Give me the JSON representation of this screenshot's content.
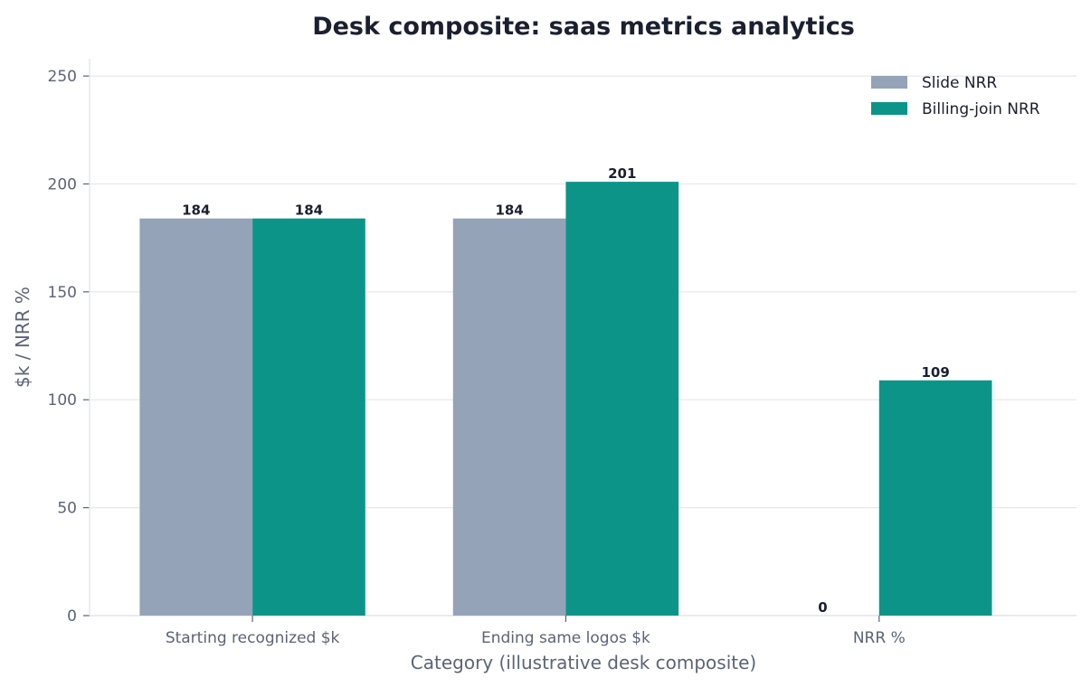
{
  "chart_data": {
    "type": "bar",
    "title": "Desk composite: saas metrics analytics",
    "xlabel": "Category (illustrative desk composite)",
    "ylabel": "$k / NRR %",
    "categories": [
      "Starting recognized $k",
      "Ending same logos $k",
      "NRR %"
    ],
    "series": [
      {
        "name": "Slide NRR",
        "values": [
          184,
          184,
          0
        ],
        "color": "#94a3b8"
      },
      {
        "name": "Billing-join NRR",
        "values": [
          184,
          201,
          109
        ],
        "color": "#0d9488"
      }
    ],
    "ylim": [
      0,
      258
    ],
    "yticks": [
      0,
      50,
      100,
      150,
      200,
      250
    ],
    "grid": true,
    "legend_position": "top-right"
  }
}
